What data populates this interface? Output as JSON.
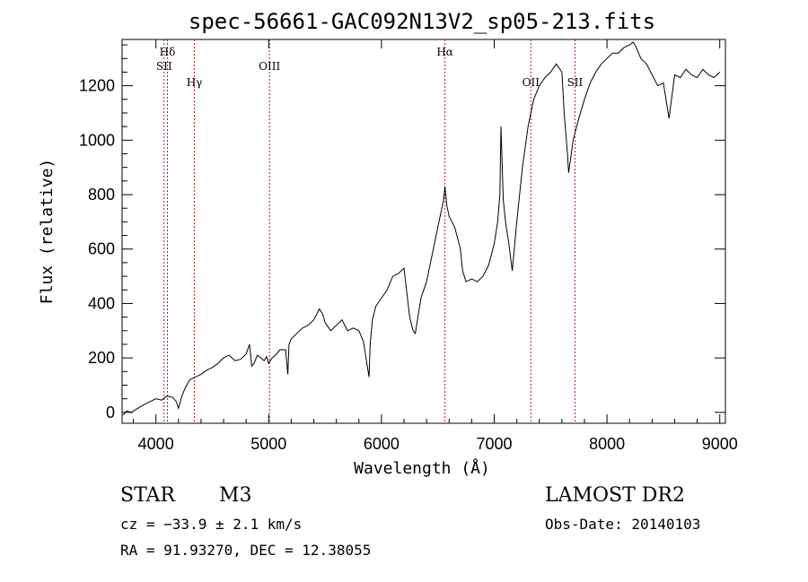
{
  "chart_data": {
    "type": "line",
    "title": "spec-56661-GAC092N13V2_sp05-213.fits",
    "xlabel": "Wavelength (Å)",
    "ylabel": "Flux (relative)",
    "xlim": [
      3700,
      9050
    ],
    "ylim": [
      -40,
      1370
    ],
    "xticks": [
      4000,
      5000,
      6000,
      7000,
      8000,
      9000
    ],
    "yticks": [
      0,
      200,
      400,
      600,
      800,
      1000,
      1200
    ],
    "grid": false,
    "line_color": "#000000",
    "marker_color": "#b22222",
    "lines": [
      {
        "label": "Hδ",
        "x": 4102,
        "row": 1
      },
      {
        "label": "SII",
        "x": 4072,
        "row": 2
      },
      {
        "label": "Hγ",
        "x": 4341,
        "row": 3
      },
      {
        "label": "OIII",
        "x": 5007,
        "row": 2
      },
      {
        "label": "Hα",
        "x": 6563,
        "row": 1
      },
      {
        "label": "OII",
        "x": 7325,
        "row": 3
      },
      {
        "label": "SII",
        "x": 7716,
        "row": 3
      }
    ],
    "series": [
      {
        "x": [
          3710,
          3740,
          3780,
          3820,
          3860,
          3900,
          3950,
          4000,
          4050,
          4100,
          4150,
          4180,
          4200,
          4230,
          4260,
          4300,
          4350,
          4400,
          4450,
          4500,
          4550,
          4600,
          4650,
          4700,
          4750,
          4800,
          4830,
          4850,
          4870,
          4900,
          4930,
          4960,
          4980,
          5000,
          5030,
          5060,
          5100,
          5150,
          5170,
          5180,
          5200,
          5250,
          5300,
          5350,
          5400,
          5450,
          5480,
          5500,
          5550,
          5600,
          5650,
          5700,
          5750,
          5800,
          5840,
          5870,
          5890,
          5900,
          5920,
          5950,
          6000,
          6050,
          6100,
          6150,
          6200,
          6250,
          6280,
          6300,
          6350,
          6400,
          6450,
          6500,
          6530,
          6550,
          6563,
          6580,
          6600,
          6650,
          6700,
          6720,
          6750,
          6800,
          6850,
          6900,
          6950,
          7000,
          7030,
          7050,
          7060,
          7080,
          7100,
          7130,
          7160,
          7200,
          7250,
          7300,
          7350,
          7400,
          7450,
          7500,
          7550,
          7600,
          7620,
          7650,
          7660,
          7700,
          7750,
          7800,
          7850,
          7900,
          7950,
          8000,
          8050,
          8100,
          8150,
          8200,
          8230,
          8250,
          8280,
          8300,
          8350,
          8400,
          8450,
          8500,
          8550,
          8600,
          8650,
          8700,
          8750,
          8800,
          8850,
          8900,
          8950,
          9000
        ],
        "values": [
          -10,
          5,
          0,
          10,
          20,
          30,
          40,
          50,
          45,
          60,
          55,
          40,
          15,
          60,
          90,
          120,
          130,
          140,
          155,
          165,
          180,
          200,
          210,
          190,
          195,
          215,
          250,
          170,
          180,
          210,
          200,
          190,
          205,
          180,
          200,
          210,
          230,
          230,
          140,
          250,
          270,
          290,
          310,
          320,
          340,
          380,
          360,
          330,
          300,
          320,
          340,
          300,
          310,
          300,
          260,
          180,
          130,
          250,
          340,
          390,
          420,
          450,
          500,
          510,
          530,
          350,
          300,
          290,
          420,
          480,
          580,
          680,
          740,
          780,
          830,
          760,
          720,
          680,
          600,
          520,
          480,
          490,
          480,
          500,
          540,
          620,
          700,
          800,
          1050,
          780,
          700,
          620,
          520,
          700,
          900,
          1050,
          1150,
          1200,
          1230,
          1250,
          1280,
          1250,
          1100,
          950,
          880,
          1000,
          1080,
          1150,
          1210,
          1250,
          1280,
          1300,
          1320,
          1320,
          1340,
          1350,
          1360,
          1350,
          1320,
          1300,
          1280,
          1240,
          1200,
          1210,
          1080,
          1240,
          1230,
          1260,
          1240,
          1230,
          1260,
          1240,
          1230,
          1250
        ]
      }
    ]
  },
  "info": {
    "object_class": "STAR",
    "subclass": "M3",
    "survey": "LAMOST DR2",
    "cz_text": "cz = −33.9 ± 2.1 km/s",
    "obs_date": "Obs-Date: 20140103",
    "coords_text": "RA =  91.93270, DEC =  12.38055"
  }
}
